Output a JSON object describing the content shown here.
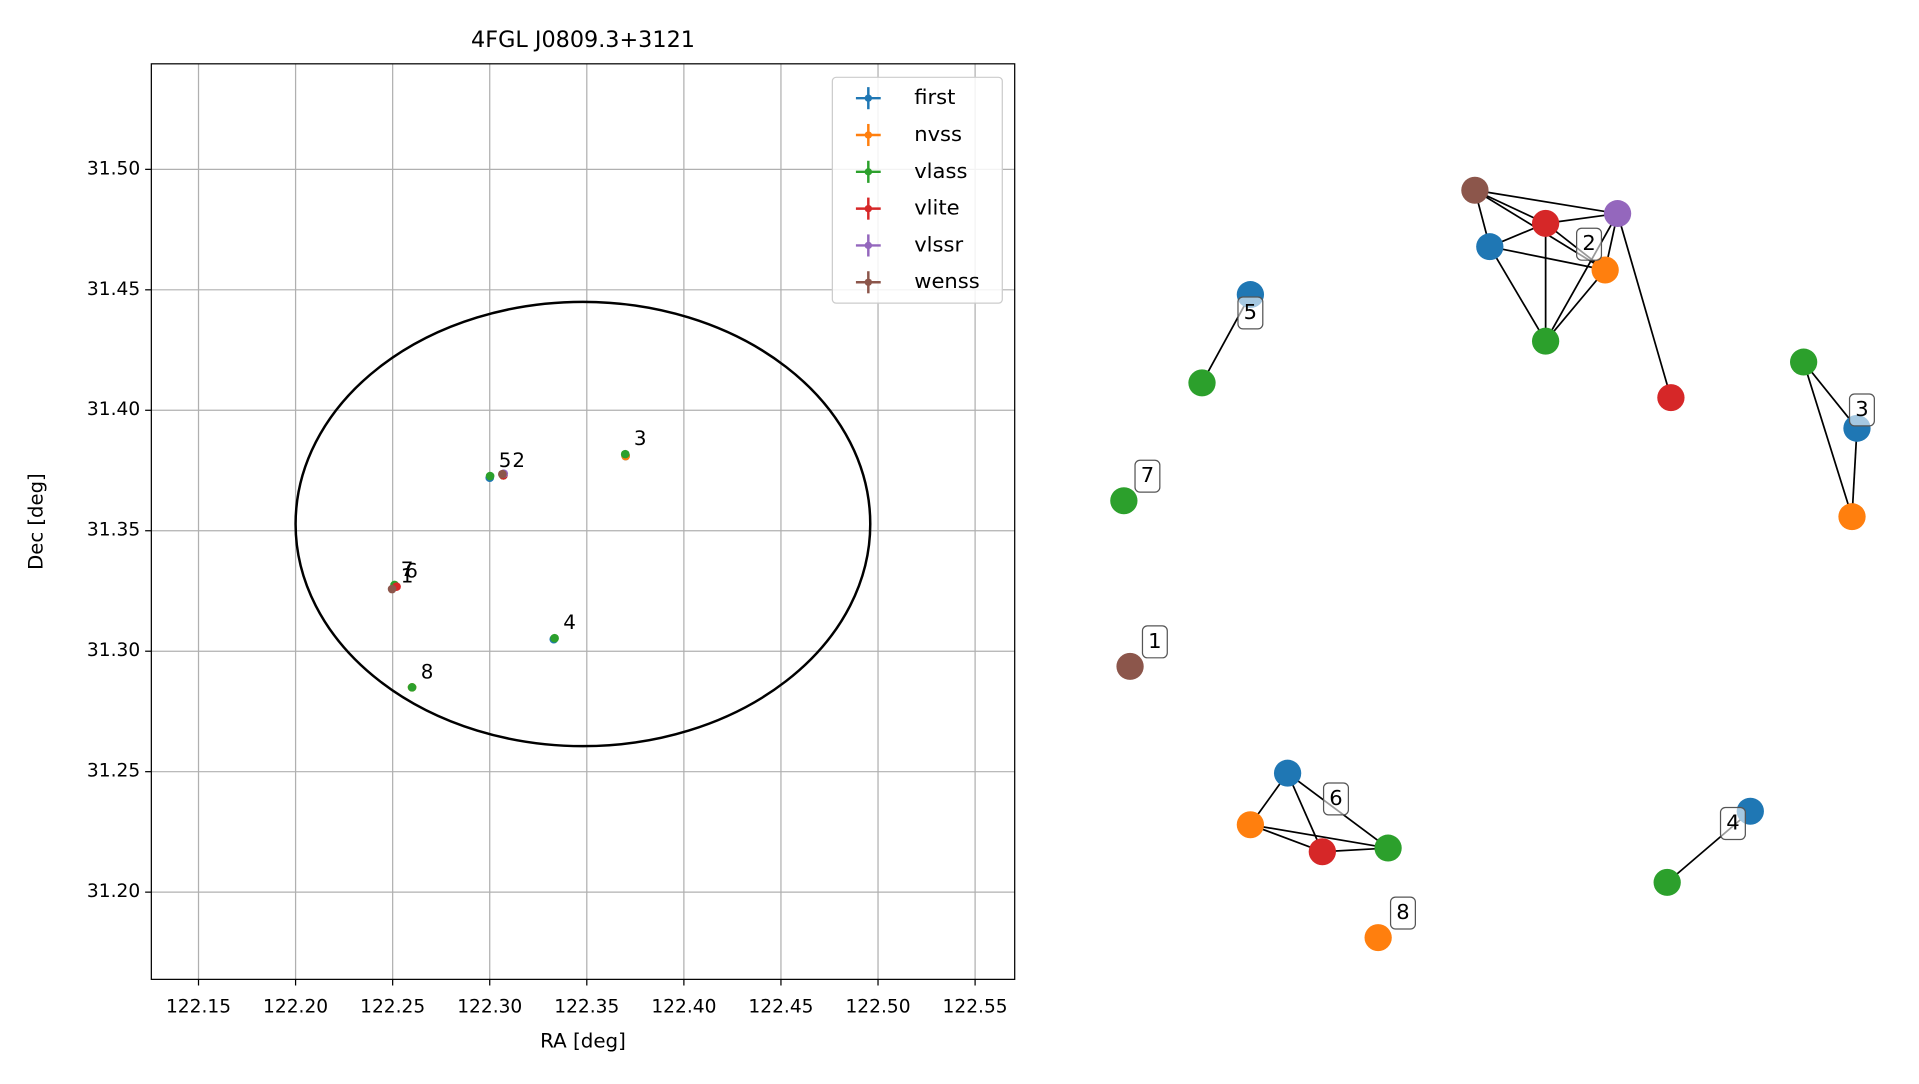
{
  "chart_data": [
    {
      "type": "scatter",
      "title": "4FGL J0809.3+3121",
      "x_label": "RA [deg]",
      "y_label": "Dec [deg]",
      "xlim": [
        122.1257,
        122.5704
      ],
      "ylim": [
        31.1638,
        31.5438
      ],
      "xticks": [
        122.15,
        {
          "value": 122.2,
          "label": "122.20"
        },
        122.25,
        {
          "value": 122.3,
          "label": "122.30"
        },
        122.35,
        {
          "value": 122.4,
          "label": "122.40"
        },
        122.45,
        {
          "value": 122.5,
          "label": "122.50"
        },
        122.55
      ],
      "yticks": [
        {
          "value": 31.2,
          "label": "31.20"
        },
        31.25,
        {
          "value": 31.3,
          "label": "31.30"
        },
        31.35,
        {
          "value": 31.4,
          "label": "31.40"
        },
        31.45,
        {
          "value": 31.5,
          "label": "31.50"
        }
      ],
      "grid": true,
      "legend": "upper right",
      "ellipse": {
        "center": [
          122.348,
          31.3528
        ],
        "half_width": 0.148,
        "half_height": 0.0922
      },
      "series": [
        {
          "name": "first",
          "color": "#1f77b4",
          "x": [
            122.307,
            122.37,
            122.333,
            122.3,
            122.251
          ],
          "y": [
            31.373,
            31.381,
            31.305,
            31.372,
            31.327
          ]
        },
        {
          "name": "nvss",
          "color": "#ff7f0e",
          "x": [
            122.307,
            122.37,
            122.251,
            122.26
          ],
          "y": [
            31.373,
            31.381,
            31.327,
            31.285
          ]
        },
        {
          "name": "vlass",
          "color": "#2ca02c",
          "x": [
            122.307,
            122.3698,
            122.3334,
            122.3002,
            122.251,
            122.26
          ],
          "y": [
            31.373,
            31.3818,
            31.3054,
            31.3727,
            31.3275,
            31.285
          ]
        },
        {
          "name": "vlite",
          "color": "#d62728",
          "x": [
            122.307,
            122.252
          ],
          "y": [
            31.373,
            31.3268
          ]
        },
        {
          "name": "vlssr",
          "color": "#9467bd",
          "x": [
            122.3072
          ],
          "y": [
            31.3737
          ]
        },
        {
          "name": "wenss",
          "color": "#8c564b",
          "x": [
            122.3065,
            122.2497
          ],
          "y": [
            31.3735,
            31.3258
          ]
        }
      ],
      "annotations": [
        {
          "text": "7",
          "x": 122.2497,
          "y": 31.3335
        },
        {
          "text": "6",
          "x": 122.252,
          "y": 31.3328
        },
        {
          "text": "1",
          "x": 122.2497,
          "y": 31.3308
        },
        {
          "text": "5",
          "x": 122.3002,
          "y": 31.3787
        },
        {
          "text": "2",
          "x": 122.3072,
          "y": 31.3787
        },
        {
          "text": "3",
          "x": 122.3698,
          "y": 31.3878
        },
        {
          "text": "4",
          "x": 122.3334,
          "y": 31.3114
        },
        {
          "text": "8",
          "x": 122.26,
          "y": 31.291
        }
      ]
    },
    {
      "type": "network",
      "nodes": [
        {
          "color": "#8c564b"
        },
        {
          "color": "#9467bd"
        },
        {
          "color": "#d62728"
        },
        {
          "color": "#1f77b4"
        },
        {
          "color": "#ff7f0e"
        },
        {
          "color": "#2ca02c"
        },
        {
          "color": "#d62728"
        },
        {
          "color": "#1f77b4"
        },
        {
          "color": "#2ca02c"
        },
        {
          "color": "#2ca02c"
        },
        {
          "color": "#1f77b4"
        },
        {
          "color": "#ff7f0e"
        },
        {
          "color": "#2ca02c"
        },
        {
          "color": "#8c564b"
        },
        {
          "color": "#1f77b4"
        },
        {
          "color": "#ff7f0e"
        },
        {
          "color": "#d62728"
        },
        {
          "color": "#2ca02c"
        },
        {
          "color": "#1f77b4"
        },
        {
          "color": "#2ca02c"
        },
        {
          "color": "#ff7f0e"
        }
      ],
      "edges": [
        [
          0,
          1
        ],
        [
          0,
          2
        ],
        [
          0,
          3
        ],
        [
          0,
          4
        ],
        [
          1,
          2
        ],
        [
          3,
          2
        ],
        [
          3,
          4
        ],
        [
          3,
          5
        ],
        [
          2,
          5
        ],
        [
          2,
          4
        ],
        [
          1,
          4
        ],
        [
          1,
          5
        ],
        [
          1,
          6
        ],
        [
          4,
          5
        ],
        [
          7,
          8
        ],
        [
          9,
          10
        ],
        [
          9,
          11
        ],
        [
          10,
          11
        ],
        [
          14,
          15
        ],
        [
          14,
          16
        ],
        [
          14,
          17
        ],
        [
          15,
          16
        ],
        [
          15,
          17
        ],
        [
          16,
          17
        ],
        [
          18,
          19
        ]
      ],
      "groups": [
        {
          "label": "2"
        },
        {
          "label": "5"
        },
        {
          "label": "3"
        },
        {
          "label": "7"
        },
        {
          "label": "1"
        },
        {
          "label": "6"
        },
        {
          "label": "4"
        },
        {
          "label": "8"
        }
      ]
    }
  ]
}
